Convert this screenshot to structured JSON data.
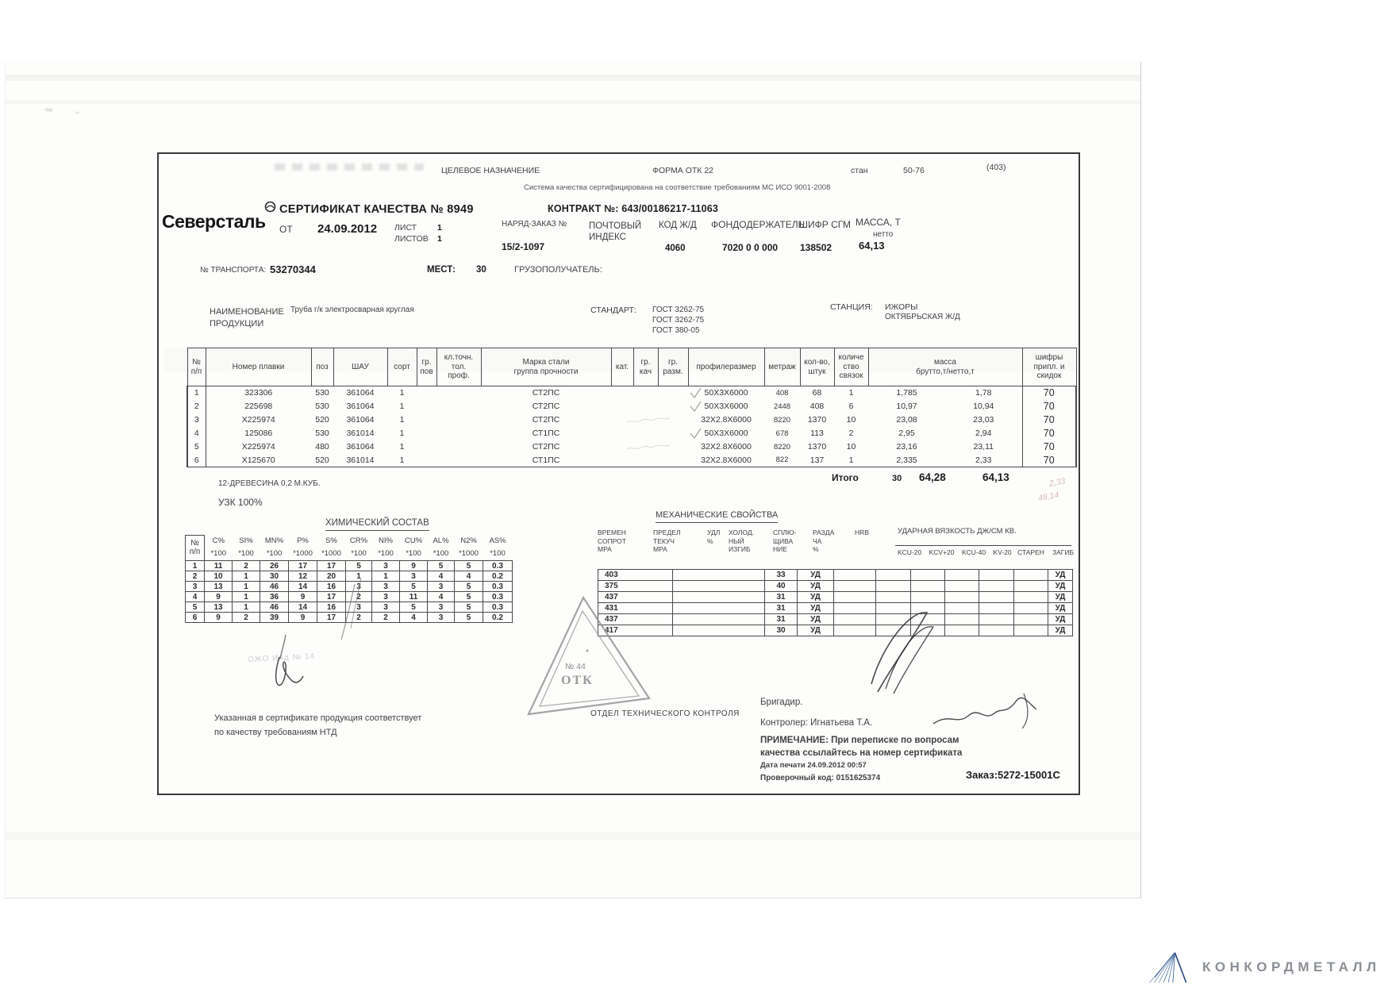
{
  "top_bar": {
    "purpose": "ЦЕЛЕВОЕ НАЗНАЧЕНИЕ",
    "form": "ФОРМА ОТК 22",
    "mill_label": "стан",
    "mill_value": "50-76",
    "page_code": "(403)",
    "iso_note": "Система качества сертифицирована на соответствие требованиям МС ИСО 9001-2008"
  },
  "header": {
    "brand": "Северсталь",
    "title": "СЕРТИФИКАТ КАЧЕСТВА № 8949",
    "from_label": "ОТ",
    "date": "24.09.2012",
    "sheet_label": "ЛИСТ",
    "sheet_value": "1",
    "sheets_label": "ЛИСТОВ",
    "sheets_value": "1",
    "contract": "КОНТРАКТ №: 643/00186217-11063",
    "order_label": "НАРЯД-ЗАКАЗ №",
    "order_value": "15/2-1097",
    "postal_label": "ПОЧТОВЫЙ\nИНДЕКС",
    "rail_code_label": "КОД Ж/Д",
    "rail_code_value": "4060",
    "holder_label": "ФОНДОДЕРЖАТЕЛЬ",
    "holder_value": "7020 0 0 000",
    "sgm_label": "ШИФР СГМ",
    "sgm_value": "138502",
    "mass_label": "МАССА, Т",
    "mass_sublabel": "нетто",
    "mass_value": "64,13"
  },
  "transport": {
    "number_label": "№ ТРАНСПОРТА:",
    "number_value": "53270344",
    "places_label": "МЕСТ:",
    "places_value": "30",
    "consignee_label": "ГРУЗОПОЛУЧАТЕЛЬ:"
  },
  "product": {
    "name_label": "НАИМЕНОВАНИЕ\nПРОДУКЦИИ",
    "name_value": "Труба г/к электросварная круглая",
    "standard_label": "СТАНДАРТ:",
    "standards": [
      "ГОСТ 3262-75",
      "ГОСТ 3262-75",
      "ГОСТ 380-05"
    ],
    "station_label": "СТАНЦИЯ:",
    "station_value": "ИЖОРЫ",
    "railway_value": "ОКТЯБРЬСКАЯ Ж/Д"
  },
  "main_table": {
    "headers": [
      "№\nп/п",
      "Номер плавки",
      "поз",
      "ШАУ",
      "сорт",
      "гр.\nпов",
      "кл.точн.\nтол.\nпроф.",
      "Марка стали\nгруппа прочности",
      "кат.",
      "гр.\nкач",
      "гр.\nразм.",
      "профилеразмер",
      "метраж",
      "кол-во,\nштук",
      "количе\nство\nсвязок",
      "масса\nбрутто,т/нетто,т",
      "шифры\nприпл. и\nскидок"
    ],
    "rows": [
      [
        "1",
        "323306",
        "530",
        "361064",
        "1",
        "",
        "",
        "СТ2ПС",
        "",
        "",
        "",
        "50X3X6000",
        "408",
        "68",
        "1",
        "1,785",
        "1,78",
        "70"
      ],
      [
        "2",
        "225698",
        "530",
        "361064",
        "1",
        "",
        "",
        "СТ2ПС",
        "",
        "",
        "",
        "50X3X6000",
        "2448",
        "408",
        "6",
        "10,97",
        "10,94",
        "70"
      ],
      [
        "3",
        "X225974",
        "520",
        "361064",
        "1",
        "",
        "",
        "СТ2ПС",
        "",
        "",
        "",
        "32X2.8X6000",
        "8220",
        "1370",
        "10",
        "23,08",
        "23,03",
        "70"
      ],
      [
        "4",
        "125086",
        "530",
        "361014",
        "1",
        "",
        "",
        "СТ1ПС",
        "",
        "",
        "",
        "50X3X6000",
        "678",
        "113",
        "2",
        "2,95",
        "2,94",
        "70"
      ],
      [
        "5",
        "X225974",
        "480",
        "361064",
        "1",
        "",
        "",
        "СТ2ПС",
        "",
        "",
        "",
        "32X2.8X6000",
        "8220",
        "1370",
        "10",
        "23,16",
        "23,11",
        "70"
      ],
      [
        "6",
        "X125670",
        "520",
        "361014",
        "1",
        "",
        "",
        "СТ1ПС",
        "",
        "",
        "",
        "32X2.8X6000",
        "822",
        "137",
        "1",
        "2,335",
        "2,33",
        "70"
      ]
    ],
    "total_label": "Итого",
    "total_bundles": "30",
    "total_gross": "64,28",
    "total_net": "64,13"
  },
  "notes": {
    "wood": "12-ДРЕВЕСИНА 0,2 М.КУБ.",
    "ultrasonic": "УЗК 100%"
  },
  "chem": {
    "title": "ХИМИЧЕСКИЙ СОСТАВ",
    "row_label": "№\nп/п",
    "cols": [
      {
        "name": "C%",
        "mult": "*100"
      },
      {
        "name": "SI%",
        "mult": "*100"
      },
      {
        "name": "MN%",
        "mult": "*100"
      },
      {
        "name": "P%",
        "mult": "*1000"
      },
      {
        "name": "S%",
        "mult": "*1000"
      },
      {
        "name": "CR%",
        "mult": "*100"
      },
      {
        "name": "NI%",
        "mult": "*100"
      },
      {
        "name": "CU%",
        "mult": "*100"
      },
      {
        "name": "AL%",
        "mult": "*100"
      },
      {
        "name": "N2%",
        "mult": "*1000"
      },
      {
        "name": "AS%",
        "mult": "*100"
      }
    ],
    "rows": [
      [
        "1",
        "11",
        "2",
        "26",
        "17",
        "17",
        "5",
        "3",
        "9",
        "5",
        "5",
        "0.3"
      ],
      [
        "2",
        "10",
        "1",
        "30",
        "12",
        "20",
        "1",
        "1",
        "3",
        "4",
        "4",
        "0.2"
      ],
      [
        "3",
        "13",
        "1",
        "46",
        "14",
        "16",
        "3",
        "3",
        "5",
        "3",
        "5",
        "0.3"
      ],
      [
        "4",
        "9",
        "1",
        "36",
        "9",
        "17",
        "2",
        "3",
        "11",
        "4",
        "5",
        "0.3"
      ],
      [
        "5",
        "13",
        "1",
        "46",
        "14",
        "16",
        "3",
        "3",
        "5",
        "3",
        "5",
        "0.3"
      ],
      [
        "6",
        "9",
        "2",
        "39",
        "9",
        "17",
        "2",
        "2",
        "4",
        "3",
        "5",
        "0.2"
      ]
    ]
  },
  "mech": {
    "title": "МЕХАНИЧЕСКИЕ СВОЙСТВА",
    "col_headers": [
      "ВРЕМЕН\nСОПРОТ\nМРА",
      "ПРЕДЕЛ\nТЕКУЧ\nМРА",
      "УДЛ\n%",
      "ХОЛОД.\nНЫЙ\nИЗГИБ",
      "СПЛЮ-\nЩИВА\nНИЕ",
      "РАЗДА\nЧА\n%",
      "HRB"
    ],
    "impact_title": "УДАРНАЯ ВЯЗКОСТЬ ДЖ/СМ КВ.",
    "impact_cols": "KCU-20  KCV+20  KCU-40  KV-20",
    "aging_label": "СТАРЕН",
    "bend_label": "ЗАГИБ",
    "rows": [
      [
        "403",
        "",
        "33",
        "УД",
        "",
        "",
        "",
        "",
        "",
        "",
        "УД"
      ],
      [
        "375",
        "",
        "40",
        "УД",
        "",
        "",
        "",
        "",
        "",
        "",
        "УД"
      ],
      [
        "437",
        "",
        "31",
        "УД",
        "",
        "",
        "",
        "",
        "",
        "",
        "УД"
      ],
      [
        "431",
        "",
        "31",
        "УД",
        "",
        "",
        "",
        "",
        "",
        "",
        "УД"
      ],
      [
        "437",
        "",
        "31",
        "УД",
        "",
        "",
        "",
        "",
        "",
        "",
        "УД"
      ],
      [
        "417",
        "",
        "30",
        "УД",
        "",
        "",
        "",
        "",
        "",
        "",
        "УД"
      ]
    ]
  },
  "stamp": {
    "number": "№ 44",
    "text": "ОТК"
  },
  "otk_department": "ОТДЕЛ ТЕХНИЧЕСКОГО КОНТРОЛЯ",
  "faint_stamp": "ОЖО  Инд № 14",
  "statement_line1": "Указанная в сертификате продукция соответствует",
  "statement_line2": "по качеству требованиям НТД",
  "footer": {
    "foreman": "Бригадир.",
    "controller": "Контролер: Игнатьева Т.А.",
    "note_line1": "ПРИМЕЧАНИЕ: При переписке по вопросам",
    "note_line2": "качества ссылайтесь на номер сертификата",
    "print_date": "Дата печати 24.09.2012 00:57",
    "check_code": "Проверочный код: 0151625374",
    "order": "Заказ:5272-15001С"
  },
  "pencil_note_1": "2,33",
  "pencil_note_2": "48,14",
  "watermark": "КОНКОРДМЕТАЛЛ"
}
